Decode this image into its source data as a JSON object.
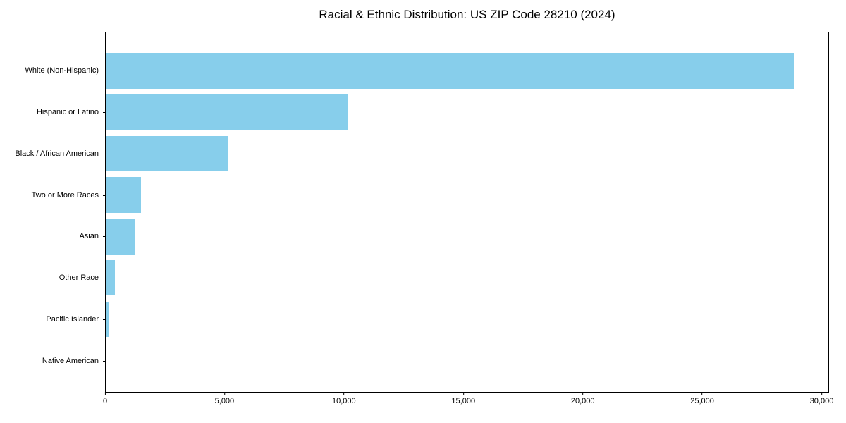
{
  "chart_data": {
    "type": "bar",
    "orientation": "horizontal",
    "title": "Racial & Ethnic Distribution: US ZIP Code 28210 (2024)",
    "xlabel": "",
    "ylabel": "",
    "categories": [
      "White (Non-Hispanic)",
      "Hispanic or Latino",
      "Black / African American",
      "Two or More Races",
      "Asian",
      "Other Race",
      "Pacific Islander",
      "Native American"
    ],
    "values": [
      28790,
      10140,
      5130,
      1470,
      1240,
      380,
      110,
      40
    ],
    "bar_color": "#87CEEB",
    "xlim": [
      0,
      30250
    ],
    "xticks": {
      "values": [
        0,
        5000,
        10000,
        15000,
        20000,
        25000,
        30000
      ],
      "labels": [
        "0",
        "5,000",
        "10,000",
        "15,000",
        "20,000",
        "25,000",
        "30,000"
      ]
    },
    "grid": false,
    "legend": null,
    "frame_color": "#000000",
    "background_color": "#ffffff"
  }
}
